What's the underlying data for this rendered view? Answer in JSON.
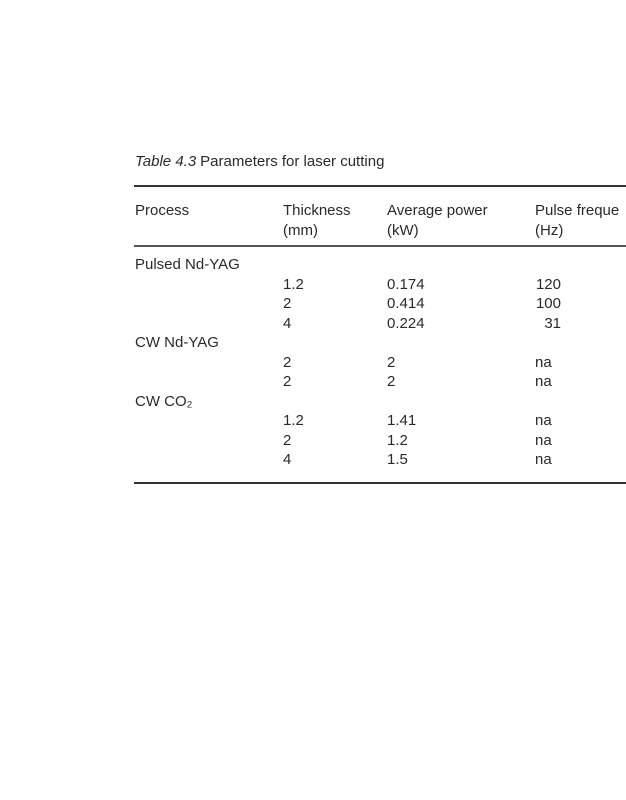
{
  "caption": {
    "label": "Table 4.3",
    "title": "Parameters for laser cutting"
  },
  "table": {
    "headers": [
      {
        "line1": "Process",
        "line2": ""
      },
      {
        "line1": "Thickness",
        "line2": "(mm)"
      },
      {
        "line1": "Average power",
        "line2": "(kW)"
      },
      {
        "line1": "Pulse freque",
        "line2": "(Hz)"
      }
    ],
    "rows": [
      [
        "Pulsed Nd-YAG",
        "",
        "",
        ""
      ],
      [
        "",
        "1.2",
        "0.174",
        "120"
      ],
      [
        "",
        "2",
        "0.414",
        "100"
      ],
      [
        "",
        "4",
        "0.224",
        "31"
      ],
      [
        "CW Nd-YAG",
        "",
        "",
        ""
      ],
      [
        "",
        "2",
        "2",
        "na"
      ],
      [
        "",
        "2",
        "2",
        "na"
      ],
      [
        "CW CO₂",
        "",
        "",
        ""
      ],
      [
        "",
        "1.2",
        "1.41",
        "na"
      ],
      [
        "",
        "2",
        "1.2",
        "na"
      ],
      [
        "",
        "4",
        "1.5",
        "na"
      ]
    ]
  }
}
